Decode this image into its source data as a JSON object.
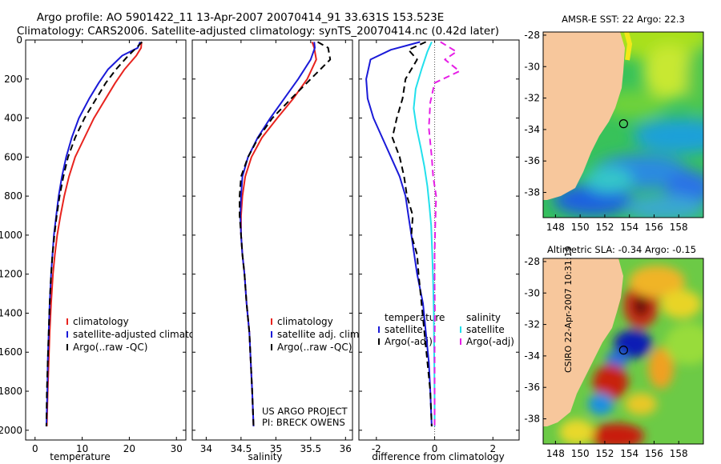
{
  "header": {
    "title_line1": "Argo profile: AO 5901422_11 13-Apr-2007 20070414_91 33.631S 153.523E",
    "title_line2": "Climatology: CARS2006. Satellite-adjusted climatology: synTS_20070414.nc (0.42d later)"
  },
  "credit": {
    "line1": "US ARGO PROJECT",
    "line2": "PI: BRECK OWENS",
    "stamp": "CSIRO 22-Apr-2007 10:31:19"
  },
  "colors": {
    "climatology": "#e8231e",
    "satellite": "#1a1ad8",
    "argo": "#000000",
    "sat_salinity": "#22e0ec",
    "argo_salinity": "#e61ee6",
    "land": "#f7c79c"
  },
  "chart_data": [
    {
      "type": "line",
      "panel": "temperature",
      "xlabel": "temperature",
      "xlim": [
        -2,
        32
      ],
      "ylim": [
        2050,
        0
      ],
      "xticks": [
        0,
        10,
        20,
        30
      ],
      "yticks": [
        0,
        200,
        400,
        600,
        800,
        1000,
        1200,
        1400,
        1600,
        1800,
        2000
      ],
      "legend": [
        "climatology",
        "satellite-adjusted climatology",
        "Argo(..raw -QC)"
      ],
      "series": [
        {
          "name": "climatology",
          "color": "climatology",
          "dash": false,
          "x": [
            22.6,
            22.5,
            21.5,
            19.0,
            17.0,
            15.0,
            12.5,
            10.5,
            8.5,
            7.2,
            6.2,
            5.4,
            4.7,
            4.2,
            3.8,
            3.4,
            3.1,
            2.9,
            2.7,
            2.5
          ],
          "y": [
            10,
            40,
            80,
            150,
            220,
            300,
            400,
            500,
            600,
            700,
            800,
            900,
            1000,
            1100,
            1200,
            1350,
            1500,
            1650,
            1800,
            1980
          ]
        },
        {
          "name": "satellite-adjusted climatology",
          "color": "satellite",
          "dash": false,
          "x": [
            22.3,
            21.8,
            18.5,
            15.5,
            13.5,
            11.5,
            9.3,
            7.8,
            6.6,
            5.7,
            5.0,
            4.5,
            4.0,
            3.7,
            3.4,
            3.1,
            2.9,
            2.7,
            2.6,
            2.4
          ],
          "y": [
            10,
            40,
            80,
            150,
            220,
            300,
            400,
            500,
            600,
            700,
            800,
            900,
            1000,
            1100,
            1200,
            1350,
            1500,
            1650,
            1800,
            1980
          ]
        },
        {
          "name": "Argo(..raw -QC)",
          "color": "argo",
          "dash": true,
          "x": [
            22.7,
            21.5,
            19.8,
            17.2,
            15.0,
            13.0,
            10.5,
            8.5,
            7.0,
            6.0,
            5.2,
            4.6,
            4.1,
            3.7,
            3.4,
            3.1,
            2.9,
            2.7,
            2.5,
            2.4
          ],
          "y": [
            10,
            40,
            80,
            150,
            220,
            300,
            400,
            500,
            600,
            700,
            800,
            900,
            1000,
            1100,
            1200,
            1350,
            1500,
            1650,
            1800,
            1980
          ]
        }
      ]
    },
    {
      "type": "line",
      "panel": "salinity",
      "xlabel": "salinity",
      "xlim": [
        33.8,
        36.1
      ],
      "ylim": [
        2050,
        0
      ],
      "xticks": [
        34,
        34.5,
        35,
        35.5,
        36
      ],
      "legend": [
        "climatology",
        "satellite adj. clim.",
        "Argo(..raw -QC)"
      ],
      "series": [
        {
          "name": "climatology",
          "color": "climatology",
          "dash": false,
          "x": [
            35.52,
            35.55,
            35.58,
            35.45,
            35.25,
            35.02,
            34.8,
            34.65,
            34.56,
            34.52,
            34.5,
            34.5,
            34.52,
            34.55,
            34.58,
            34.62,
            34.64,
            34.66,
            34.68
          ],
          "y": [
            10,
            40,
            100,
            200,
            300,
            400,
            500,
            600,
            700,
            800,
            900,
            1000,
            1100,
            1200,
            1350,
            1500,
            1650,
            1800,
            1980
          ]
        },
        {
          "name": "satellite adj. clim.",
          "color": "satellite",
          "dash": false,
          "x": [
            35.55,
            35.56,
            35.5,
            35.32,
            35.12,
            34.92,
            34.74,
            34.6,
            34.52,
            34.5,
            34.49,
            34.5,
            34.52,
            34.55,
            34.58,
            34.62,
            34.64,
            34.66,
            34.68
          ],
          "y": [
            10,
            40,
            100,
            200,
            300,
            400,
            500,
            600,
            700,
            800,
            900,
            1000,
            1100,
            1200,
            1350,
            1500,
            1650,
            1800,
            1980
          ]
        },
        {
          "name": "Argo(..raw -QC)",
          "color": "argo",
          "dash": true,
          "x": [
            35.6,
            35.75,
            35.78,
            35.5,
            35.22,
            34.95,
            34.75,
            34.6,
            34.5,
            34.48,
            34.48,
            34.5,
            34.52,
            34.55,
            34.58,
            34.62,
            34.64,
            34.66,
            34.68
          ],
          "y": [
            10,
            40,
            100,
            200,
            300,
            400,
            500,
            600,
            700,
            800,
            900,
            1000,
            1100,
            1200,
            1350,
            1500,
            1650,
            1800,
            1980
          ]
        }
      ]
    },
    {
      "type": "line",
      "panel": "difference",
      "xlabel": "difference from climatology",
      "xlim": [
        -2.6,
        2.9
      ],
      "ylim": [
        2050,
        0
      ],
      "xticks": [
        -2,
        0,
        2
      ],
      "zero_line": true,
      "legend_groups": [
        {
          "title": "temperature",
          "items": [
            "satellite",
            "Argo(-adj)"
          ]
        },
        {
          "title": "salinity",
          "items": [
            "satellite",
            "Argo(-adj)"
          ]
        }
      ],
      "series": [
        {
          "name": "satellite",
          "group": "temperature",
          "color": "satellite",
          "dash": false,
          "x": [
            -0.5,
            -1.5,
            -2.2,
            -2.35,
            -2.3,
            -2.1,
            -1.8,
            -1.5,
            -1.2,
            -1.0,
            -0.9,
            -0.8,
            -0.7,
            -0.6,
            -0.4,
            -0.3,
            -0.2,
            -0.15,
            -0.1
          ],
          "y": [
            10,
            50,
            100,
            200,
            300,
            400,
            500,
            600,
            700,
            800,
            900,
            1000,
            1100,
            1200,
            1350,
            1500,
            1650,
            1800,
            1980
          ]
        },
        {
          "name": "Argo(-adj)",
          "group": "temperature",
          "color": "argo",
          "dash": true,
          "x": [
            -0.3,
            -0.9,
            -0.6,
            -1.0,
            -1.1,
            -1.3,
            -1.45,
            -1.2,
            -1.05,
            -0.95,
            -0.75,
            -0.8,
            -0.6,
            -0.55,
            -0.45,
            -0.35,
            -0.25,
            -0.15,
            -0.1
          ],
          "y": [
            10,
            50,
            100,
            200,
            300,
            400,
            500,
            600,
            700,
            800,
            900,
            1000,
            1100,
            1200,
            1350,
            1500,
            1650,
            1800,
            1980
          ]
        },
        {
          "name": "satellite",
          "group": "salinity",
          "color": "sat_salinity",
          "dash": false,
          "x": [
            -0.1,
            -0.25,
            -0.45,
            -0.65,
            -0.72,
            -0.62,
            -0.48,
            -0.35,
            -0.25,
            -0.18,
            -0.12,
            -0.08,
            -0.05,
            -0.03,
            -0.02,
            -0.01,
            0.0,
            0.0
          ],
          "y": [
            10,
            60,
            150,
            250,
            350,
            450,
            550,
            650,
            750,
            850,
            950,
            1100,
            1250,
            1400,
            1550,
            1700,
            1850,
            1980
          ]
        },
        {
          "name": "Argo(-adj)",
          "group": "salinity",
          "color": "argo_salinity",
          "dash": true,
          "x": [
            0.2,
            0.75,
            0.35,
            0.85,
            0.0,
            -0.15,
            -0.2,
            -0.1,
            -0.05,
            0.05,
            0.02,
            0.0,
            0.0,
            0.01,
            0.0,
            0.0,
            0.0,
            0.0
          ],
          "y": [
            10,
            60,
            100,
            160,
            220,
            320,
            450,
            600,
            700,
            800,
            950,
            1100,
            1250,
            1400,
            1550,
            1700,
            1850,
            1980
          ]
        }
      ]
    },
    {
      "type": "heatmap",
      "panel": "sst-map",
      "title": "AMSR-E SST: 22 Argo: 22.3",
      "xlim": [
        147,
        160
      ],
      "ylim": [
        -39.6,
        -27.8
      ],
      "xticks": [
        148,
        150,
        152,
        154,
        156,
        158
      ],
      "yticks": [
        -28,
        -30,
        -32,
        -34,
        -36,
        -38
      ],
      "marker": {
        "lon": 153.523,
        "lat": -33.631
      }
    },
    {
      "type": "heatmap",
      "panel": "sla-map",
      "title": "Altimetric SLA: -0.34 Argo: -0.15",
      "xlim": [
        147,
        160
      ],
      "ylim": [
        -39.6,
        -27.8
      ],
      "xticks": [
        148,
        150,
        152,
        154,
        156,
        158
      ],
      "yticks": [
        -28,
        -30,
        -32,
        -34,
        -36,
        -38
      ],
      "marker": {
        "lon": 153.523,
        "lat": -33.631
      }
    }
  ]
}
